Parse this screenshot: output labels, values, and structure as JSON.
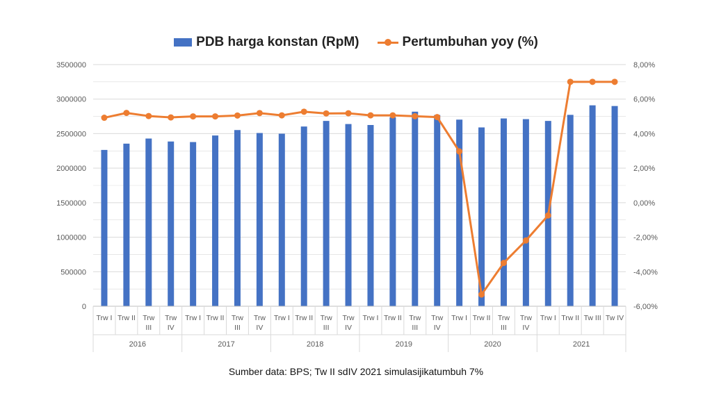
{
  "chart_data": {
    "type": "bar+line",
    "legend": {
      "position": "top",
      "bar_label": "PDB harga konstan (RpM)",
      "line_label": "Pertumbuhan yoy (%)"
    },
    "colors": {
      "bar": "#4472C4",
      "line": "#ED7D31",
      "grid": "#D9D9D9",
      "axis_text": "#595959"
    },
    "left_axis": {
      "ylim": [
        0,
        3500000
      ],
      "ticks": [
        "0",
        "500000",
        "1000000",
        "1500000",
        "2000000",
        "2500000",
        "3000000",
        "3500000"
      ]
    },
    "right_axis": {
      "ylim": [
        -6,
        8
      ],
      "ticks": [
        "-6,00%",
        "-4,00%",
        "-2,00%",
        "0,00%",
        "2,00%",
        "4,00%",
        "6,00%",
        "8,00%"
      ]
    },
    "grid": true,
    "categories": [
      {
        "label": [
          "Trw I"
        ],
        "year": "2016"
      },
      {
        "label": [
          "Trw II"
        ],
        "year": "2016"
      },
      {
        "label": [
          "Trw",
          "III"
        ],
        "year": "2016"
      },
      {
        "label": [
          "Trw",
          "IV"
        ],
        "year": "2016"
      },
      {
        "label": [
          "Trw I"
        ],
        "year": "2017"
      },
      {
        "label": [
          "Trw II"
        ],
        "year": "2017"
      },
      {
        "label": [
          "Trw",
          "III"
        ],
        "year": "2017"
      },
      {
        "label": [
          "Trw",
          "IV"
        ],
        "year": "2017"
      },
      {
        "label": [
          "Trw I"
        ],
        "year": "2018"
      },
      {
        "label": [
          "Trw II"
        ],
        "year": "2018"
      },
      {
        "label": [
          "Trw",
          "III"
        ],
        "year": "2018"
      },
      {
        "label": [
          "Trw",
          "IV"
        ],
        "year": "2018"
      },
      {
        "label": [
          "Trw I"
        ],
        "year": "2019"
      },
      {
        "label": [
          "Trw II"
        ],
        "year": "2019"
      },
      {
        "label": [
          "Trw",
          "III"
        ],
        "year": "2019"
      },
      {
        "label": [
          "Trw",
          "IV"
        ],
        "year": "2019"
      },
      {
        "label": [
          "Trw I"
        ],
        "year": "2020"
      },
      {
        "label": [
          "Trw II"
        ],
        "year": "2020"
      },
      {
        "label": [
          "Trw",
          "III"
        ],
        "year": "2020"
      },
      {
        "label": [
          "Trw",
          "IV"
        ],
        "year": "2020"
      },
      {
        "label": [
          "Trw I"
        ],
        "year": "2021"
      },
      {
        "label": [
          "Trw II"
        ],
        "year": "2021"
      },
      {
        "label": [
          "Tw III"
        ],
        "year": "2021"
      },
      {
        "label": [
          "Tw IV"
        ],
        "year": "2021"
      }
    ],
    "years": [
      "2016",
      "2017",
      "2018",
      "2019",
      "2020",
      "2021"
    ],
    "series": [
      {
        "name": "PDB harga konstan (RpM)",
        "type": "bar",
        "axis": "left",
        "values": [
          2264000,
          2355000,
          2429000,
          2386000,
          2378000,
          2473000,
          2552000,
          2509000,
          2499000,
          2603000,
          2684000,
          2639000,
          2625000,
          2736000,
          2818000,
          2770000,
          2703000,
          2590000,
          2720000,
          2710000,
          2684000,
          2772000,
          2910000,
          2900000
        ]
      },
      {
        "name": "Pertumbuhan yoy (%)",
        "type": "line",
        "axis": "right",
        "values": [
          4.92,
          5.2,
          5.02,
          4.94,
          5.0,
          5.0,
          5.05,
          5.19,
          5.06,
          5.27,
          5.17,
          5.18,
          5.06,
          5.06,
          5.01,
          4.96,
          2.97,
          -5.32,
          -3.49,
          -2.19,
          -0.74,
          7.0,
          7.0,
          7.0
        ]
      }
    ]
  },
  "footer": {
    "source": "Sumber data: BPS; Tw  II sdIV 2021 simulasijikatumbuh 7%"
  }
}
